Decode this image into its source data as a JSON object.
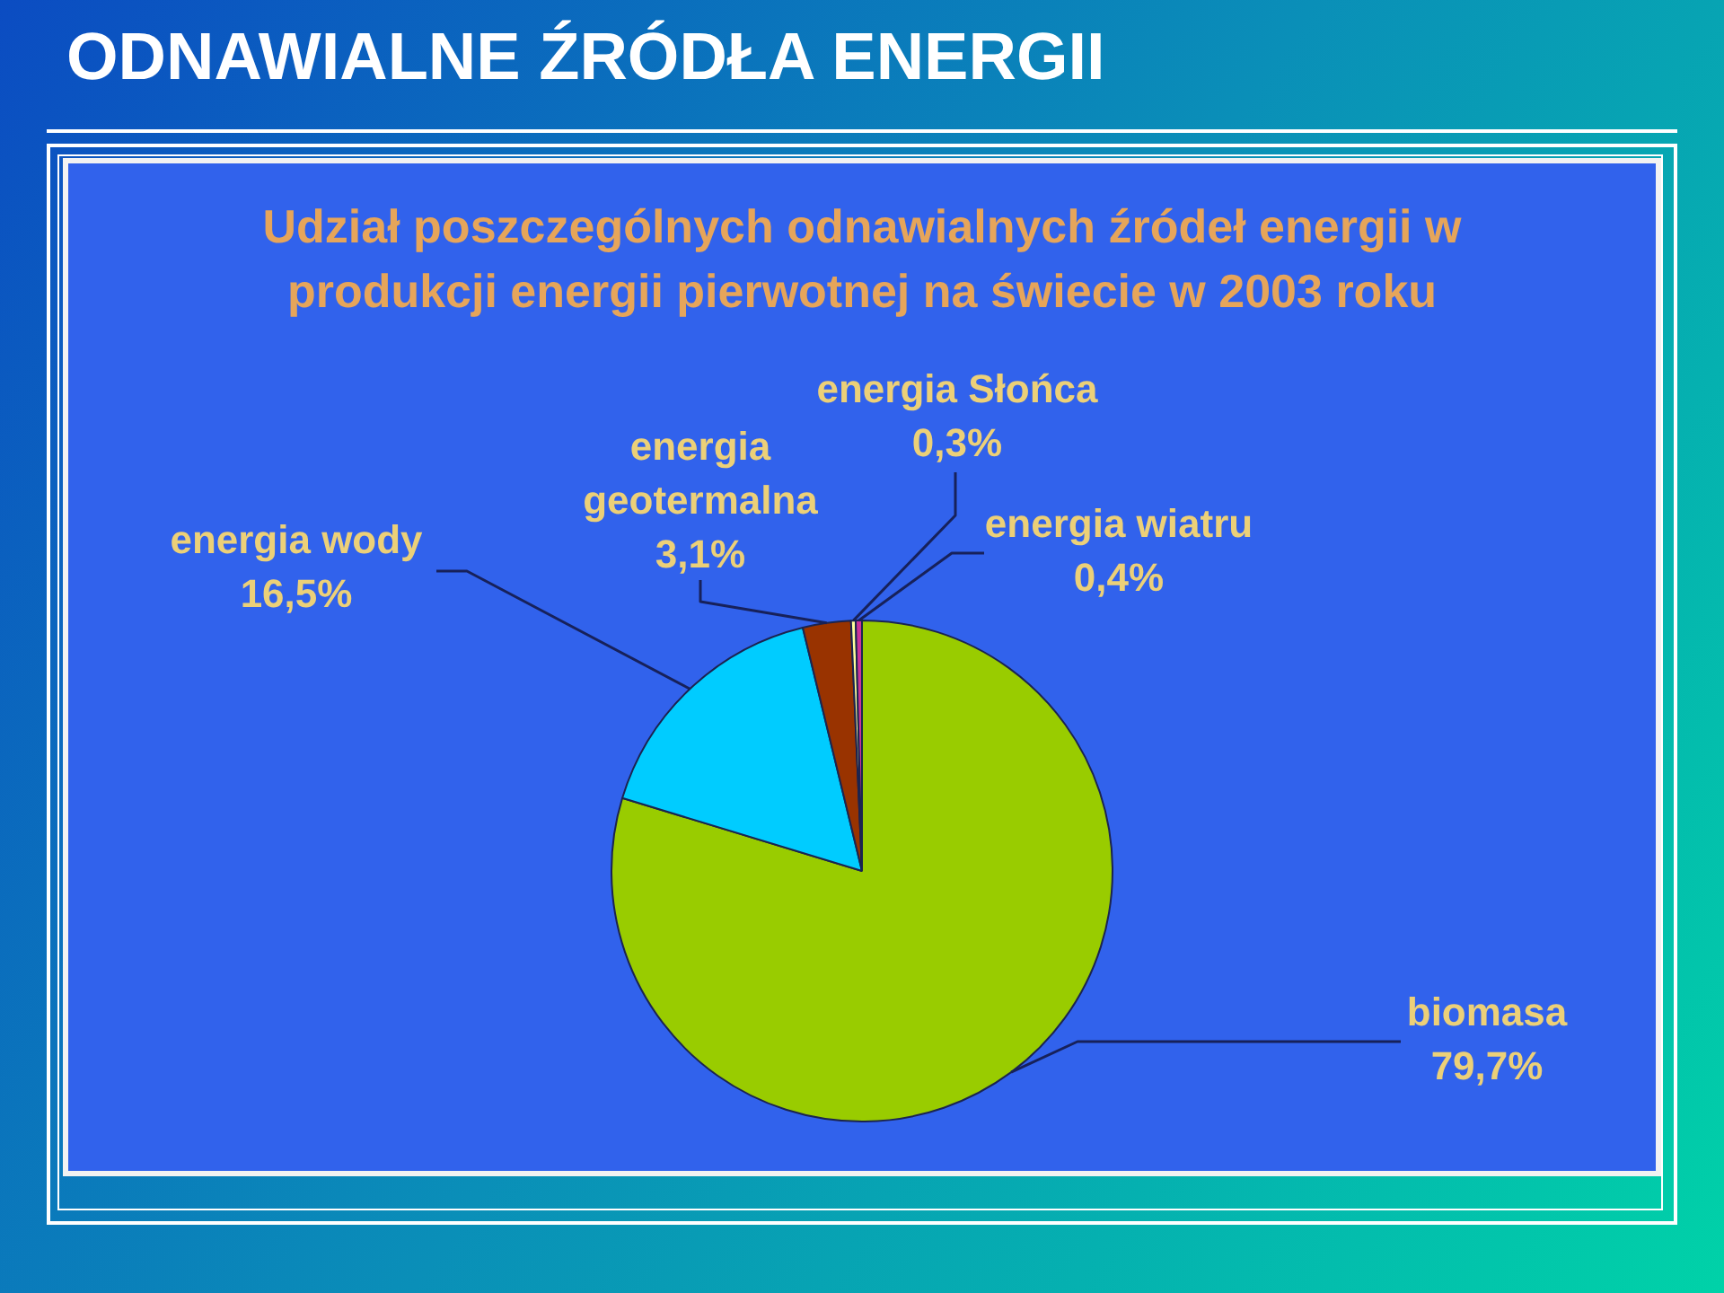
{
  "chart_data": {
    "type": "pie",
    "title": "ODNAWIALNE ŹRÓDŁA ENERGII",
    "subtitle": "Udział poszczególnych odnawialnych źródeł energii w produkcji energii pierwotnej na świecie w 2003 roku",
    "categories": [
      "biomasa",
      "energia wody",
      "energia geotermalna",
      "energia Słońca",
      "energia wiatru"
    ],
    "values": [
      79.7,
      16.5,
      3.1,
      0.3,
      0.4
    ],
    "colors": [
      "#99cc00",
      "#00ccff",
      "#993300",
      "#ffff99",
      "#cc3399"
    ],
    "value_labels": [
      "79,7%",
      "16,5%",
      "3,1%",
      "0,3%",
      "0,4%"
    ]
  }
}
